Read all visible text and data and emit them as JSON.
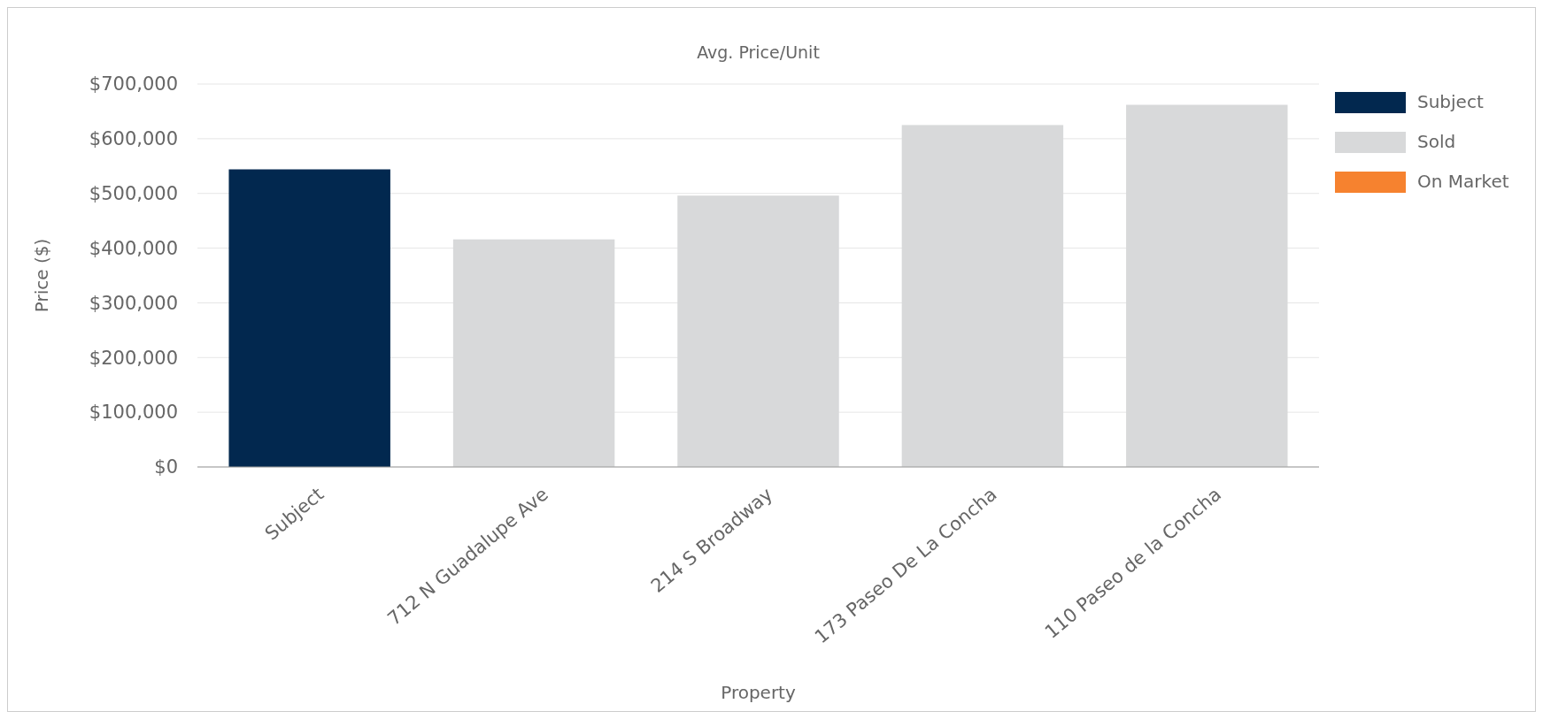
{
  "chart_data": {
    "type": "bar",
    "title": "Avg. Price/Unit",
    "xlabel": "Property",
    "ylabel": "Price ($)",
    "categories": [
      "Subject",
      "712 N Guadalupe Ave",
      "214 S Broadway",
      "173 Paseo De La Concha",
      "110 Paseo de la Concha"
    ],
    "series": [
      {
        "name": "Subject",
        "color": "#02284f",
        "values": [
          544000,
          null,
          null,
          null,
          null
        ]
      },
      {
        "name": "Sold",
        "color": "#d8d9da",
        "values": [
          null,
          416000,
          496000,
          625000,
          662000
        ]
      },
      {
        "name": "On Market",
        "color": "#f6822f",
        "values": [
          null,
          null,
          null,
          null,
          null
        ]
      }
    ],
    "stacked": true,
    "ylim": [
      0,
      700000
    ],
    "yticks": [
      {
        "value": 0,
        "label": "$0"
      },
      {
        "value": 100000,
        "label": "$100,000"
      },
      {
        "value": 200000,
        "label": "$200,000"
      },
      {
        "value": 300000,
        "label": "$300,000"
      },
      {
        "value": 400000,
        "label": "$400,000"
      },
      {
        "value": 500000,
        "label": "$500,000"
      },
      {
        "value": 600000,
        "label": "$600,000"
      },
      {
        "value": 700000,
        "label": "$700,000"
      }
    ],
    "grid": "y",
    "legend": "right"
  }
}
